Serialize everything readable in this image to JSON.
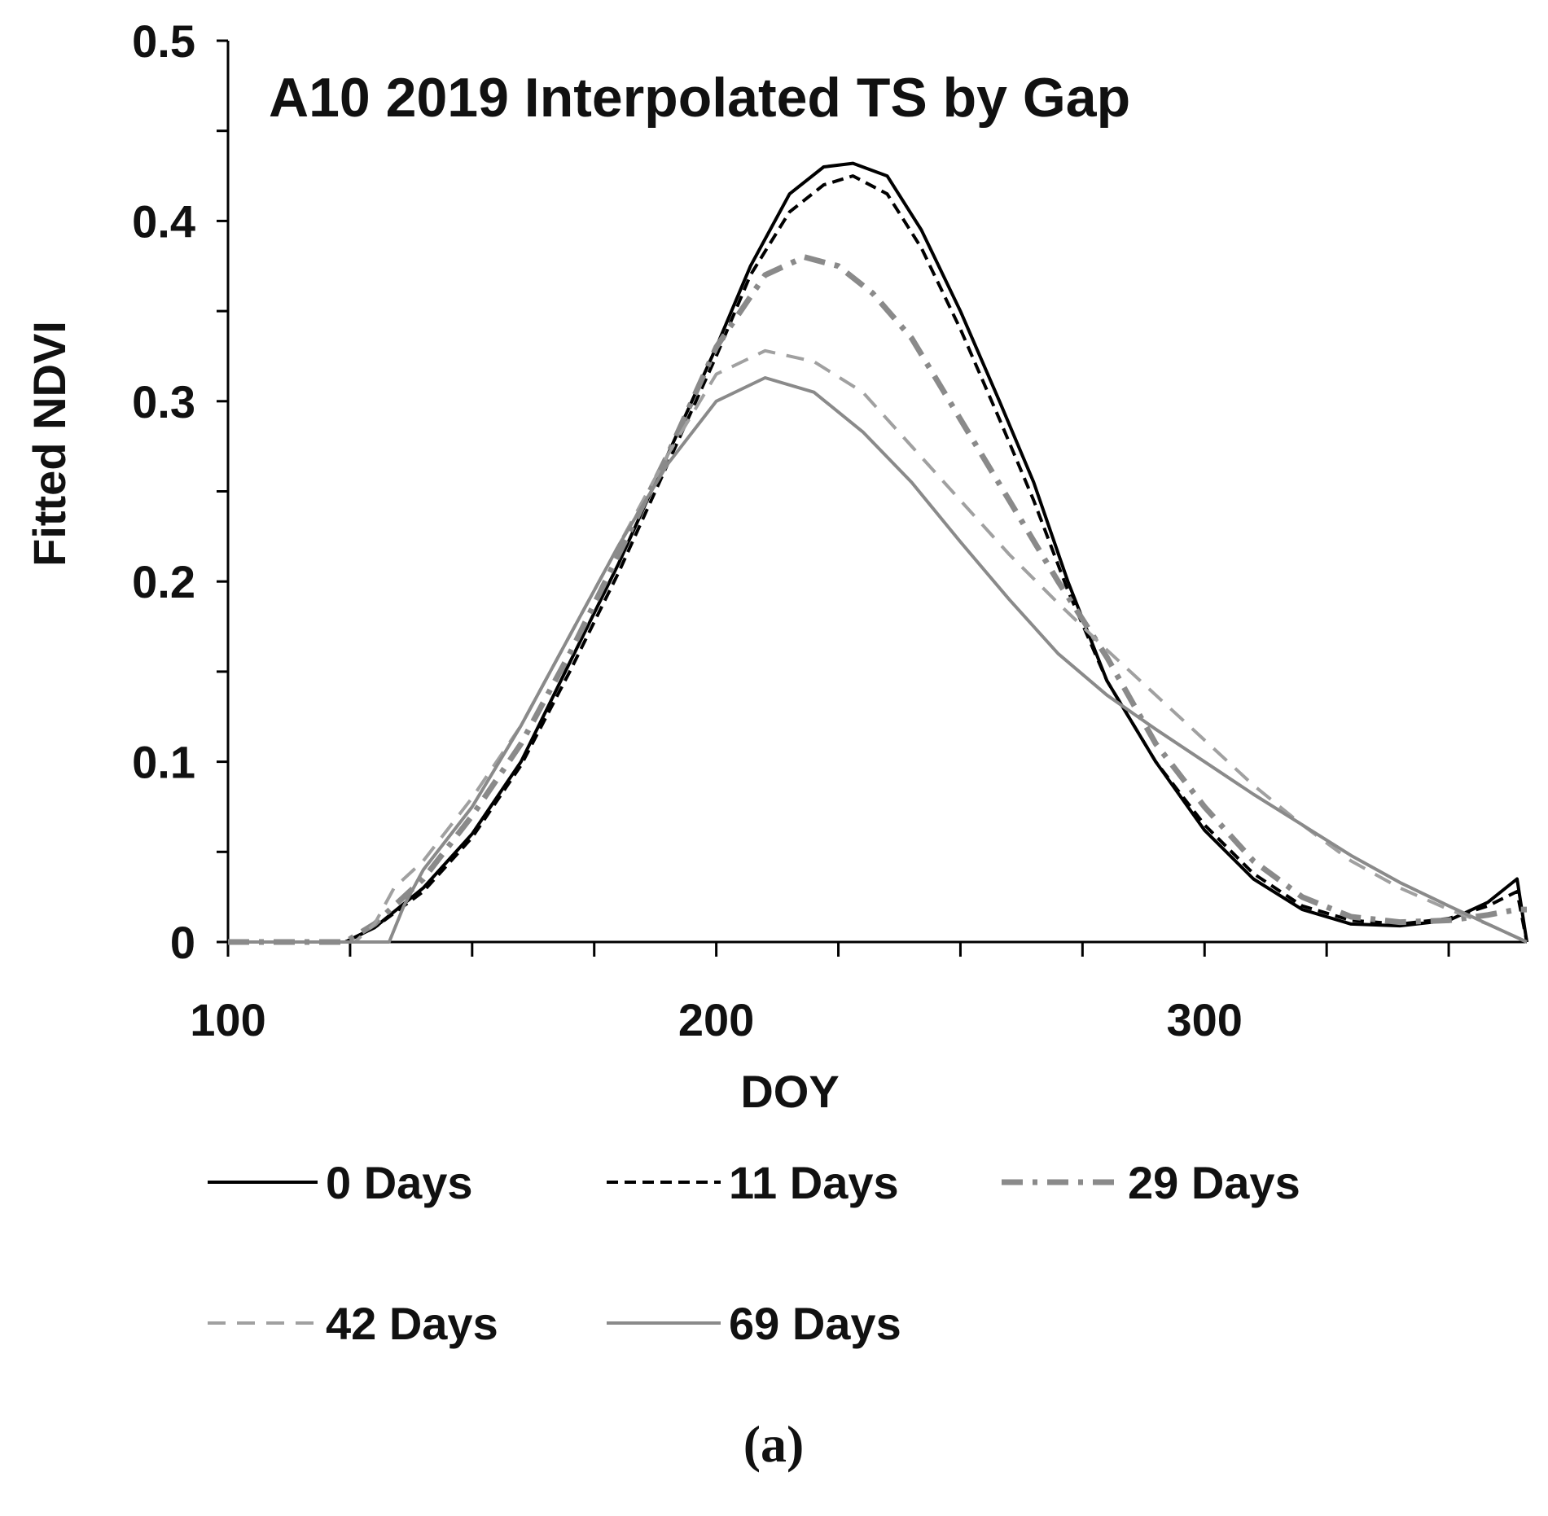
{
  "chart_data": {
    "type": "line",
    "title": "A10 2019 Interpolated TS by Gap",
    "xlabel": "DOY",
    "ylabel": "Fitted NDVI",
    "xlim": [
      100,
      366
    ],
    "ylim": [
      0,
      0.5
    ],
    "x_ticks": [
      "100",
      "200",
      "300"
    ],
    "y_ticks": [
      "0",
      "0.1",
      "0.2",
      "0.3",
      "0.4",
      "0.5"
    ],
    "panel_label": "(a)",
    "legend_position": "bottom",
    "series": [
      {
        "name": "0 Days",
        "color": "#000000",
        "style": "solid",
        "points": [
          [
            100,
            0
          ],
          [
            120,
            0
          ],
          [
            124,
            0
          ],
          [
            130,
            0.008
          ],
          [
            140,
            0.03
          ],
          [
            150,
            0.06
          ],
          [
            160,
            0.1
          ],
          [
            170,
            0.155
          ],
          [
            180,
            0.21
          ],
          [
            190,
            0.27
          ],
          [
            200,
            0.33
          ],
          [
            207,
            0.375
          ],
          [
            215,
            0.415
          ],
          [
            222,
            0.43
          ],
          [
            228,
            0.432
          ],
          [
            235,
            0.425
          ],
          [
            242,
            0.395
          ],
          [
            250,
            0.35
          ],
          [
            258,
            0.3
          ],
          [
            265,
            0.255
          ],
          [
            272,
            0.2
          ],
          [
            280,
            0.145
          ],
          [
            290,
            0.1
          ],
          [
            300,
            0.062
          ],
          [
            310,
            0.035
          ],
          [
            320,
            0.018
          ],
          [
            330,
            0.01
          ],
          [
            340,
            0.009
          ],
          [
            350,
            0.012
          ],
          [
            358,
            0.022
          ],
          [
            364,
            0.035
          ],
          [
            366,
            0
          ]
        ]
      },
      {
        "name": "11 Days",
        "color": "#000000",
        "style": "dashed",
        "points": [
          [
            100,
            0
          ],
          [
            120,
            0
          ],
          [
            124,
            0
          ],
          [
            130,
            0.008
          ],
          [
            140,
            0.028
          ],
          [
            150,
            0.058
          ],
          [
            160,
            0.098
          ],
          [
            170,
            0.15
          ],
          [
            180,
            0.205
          ],
          [
            190,
            0.265
          ],
          [
            200,
            0.325
          ],
          [
            207,
            0.37
          ],
          [
            215,
            0.405
          ],
          [
            222,
            0.42
          ],
          [
            228,
            0.425
          ],
          [
            235,
            0.415
          ],
          [
            242,
            0.385
          ],
          [
            250,
            0.34
          ],
          [
            258,
            0.29
          ],
          [
            265,
            0.245
          ],
          [
            272,
            0.195
          ],
          [
            280,
            0.145
          ],
          [
            290,
            0.1
          ],
          [
            300,
            0.065
          ],
          [
            310,
            0.038
          ],
          [
            320,
            0.02
          ],
          [
            330,
            0.012
          ],
          [
            340,
            0.01
          ],
          [
            350,
            0.013
          ],
          [
            358,
            0.02
          ],
          [
            364,
            0.028
          ],
          [
            366,
            0
          ]
        ]
      },
      {
        "name": "29 Days",
        "color": "#8a8a8a",
        "style": "dash-dot",
        "points": [
          [
            100,
            0
          ],
          [
            120,
            0
          ],
          [
            124,
            0
          ],
          [
            130,
            0.01
          ],
          [
            140,
            0.035
          ],
          [
            150,
            0.07
          ],
          [
            160,
            0.11
          ],
          [
            170,
            0.16
          ],
          [
            180,
            0.215
          ],
          [
            190,
            0.27
          ],
          [
            200,
            0.33
          ],
          [
            210,
            0.37
          ],
          [
            218,
            0.38
          ],
          [
            225,
            0.375
          ],
          [
            232,
            0.36
          ],
          [
            240,
            0.335
          ],
          [
            250,
            0.29
          ],
          [
            260,
            0.245
          ],
          [
            270,
            0.2
          ],
          [
            280,
            0.158
          ],
          [
            290,
            0.11
          ],
          [
            300,
            0.075
          ],
          [
            310,
            0.045
          ],
          [
            320,
            0.025
          ],
          [
            330,
            0.014
          ],
          [
            340,
            0.011
          ],
          [
            350,
            0.012
          ],
          [
            358,
            0.015
          ],
          [
            364,
            0.018
          ],
          [
            366,
            0.018
          ]
        ]
      },
      {
        "name": "42 Days",
        "color": "#a0a0a0",
        "style": "dashed",
        "points": [
          [
            100,
            0
          ],
          [
            120,
            0
          ],
          [
            126,
            0
          ],
          [
            130,
            0.01
          ],
          [
            134,
            0.03
          ],
          [
            140,
            0.045
          ],
          [
            150,
            0.08
          ],
          [
            160,
            0.12
          ],
          [
            170,
            0.17
          ],
          [
            180,
            0.22
          ],
          [
            190,
            0.27
          ],
          [
            200,
            0.315
          ],
          [
            210,
            0.328
          ],
          [
            220,
            0.322
          ],
          [
            230,
            0.305
          ],
          [
            240,
            0.275
          ],
          [
            250,
            0.245
          ],
          [
            260,
            0.215
          ],
          [
            270,
            0.188
          ],
          [
            280,
            0.162
          ],
          [
            290,
            0.137
          ],
          [
            300,
            0.112
          ],
          [
            310,
            0.087
          ],
          [
            320,
            0.065
          ],
          [
            330,
            0.045
          ],
          [
            340,
            0.03
          ],
          [
            350,
            0.018
          ],
          [
            358,
            0.01
          ],
          [
            366,
            0
          ]
        ]
      },
      {
        "name": "69 Days",
        "color": "#8a8a8a",
        "style": "solid",
        "points": [
          [
            100,
            0
          ],
          [
            120,
            0
          ],
          [
            130,
            0
          ],
          [
            133,
            0
          ],
          [
            136,
            0.02
          ],
          [
            140,
            0.04
          ],
          [
            150,
            0.075
          ],
          [
            160,
            0.12
          ],
          [
            170,
            0.17
          ],
          [
            180,
            0.22
          ],
          [
            190,
            0.265
          ],
          [
            200,
            0.3
          ],
          [
            210,
            0.313
          ],
          [
            220,
            0.305
          ],
          [
            230,
            0.283
          ],
          [
            240,
            0.255
          ],
          [
            250,
            0.222
          ],
          [
            260,
            0.19
          ],
          [
            270,
            0.16
          ],
          [
            280,
            0.137
          ],
          [
            290,
            0.118
          ],
          [
            300,
            0.1
          ],
          [
            310,
            0.082
          ],
          [
            320,
            0.065
          ],
          [
            330,
            0.048
          ],
          [
            340,
            0.033
          ],
          [
            350,
            0.02
          ],
          [
            358,
            0.01
          ],
          [
            366,
            0
          ]
        ]
      }
    ]
  }
}
